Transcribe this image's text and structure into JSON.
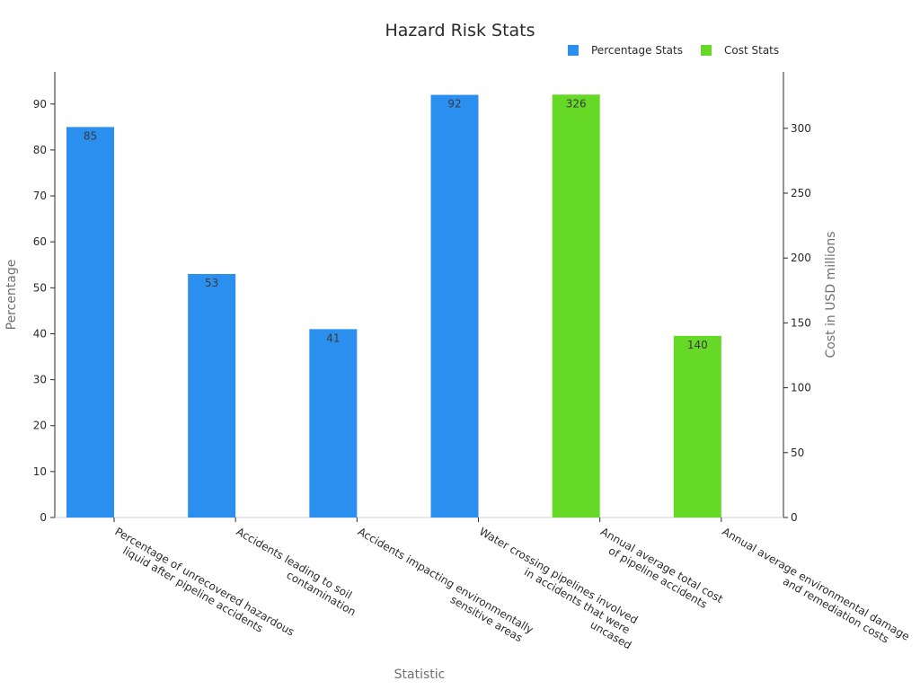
{
  "chart_data": {
    "type": "bar",
    "title": "Hazard Risk Stats",
    "xlabel": "Statistic",
    "ylabel_left": "Percentage",
    "ylabel_right": "Cost in USD millions",
    "categories": [
      [
        "Percentage of unrecovered hazardous",
        "liquid after pipeline accidents"
      ],
      [
        "Accidents leading to soil",
        "contamination"
      ],
      [
        "Accidents impacting environmentally",
        "sensitive areas"
      ],
      [
        "Water crossing pipelines involved",
        "in accidents that were",
        "uncased"
      ],
      [
        "Annual average total cost",
        "of pipeline accidents"
      ],
      [
        "Annual average environmental damage",
        "and remediation costs"
      ]
    ],
    "series": [
      {
        "name": "Percentage Stats",
        "axis": "left",
        "color": "#2b8ff0",
        "values": [
          85,
          53,
          41,
          92,
          null,
          null
        ]
      },
      {
        "name": "Cost Stats",
        "axis": "right",
        "color": "#66d926",
        "values": [
          null,
          null,
          null,
          null,
          326,
          140
        ]
      }
    ],
    "ylim_left": [
      0,
      97
    ],
    "yticks_left": [
      0,
      10,
      20,
      30,
      40,
      50,
      60,
      70,
      80,
      90
    ],
    "ylim_right": [
      0,
      343.5
    ],
    "yticks_right": [
      0,
      50,
      100,
      150,
      200,
      250,
      300
    ],
    "grid": false,
    "legend_position": "top-right"
  }
}
